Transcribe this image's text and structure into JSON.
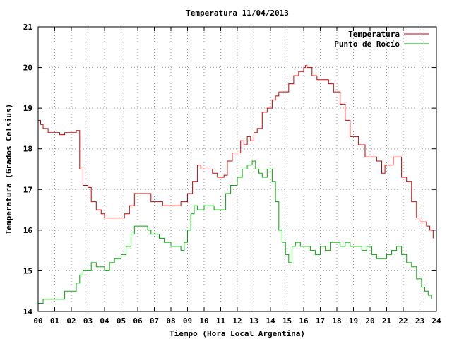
{
  "chart_data": {
    "type": "line",
    "title": "Temperatura 11/04/2013",
    "xlabel": "Tiempo (Hora Local Argentina)",
    "ylabel": "Temperatura (Grados Celsius)",
    "xlim": [
      0,
      24
    ],
    "ylim": [
      14,
      21
    ],
    "x_ticks": [
      "00",
      "01",
      "02",
      "03",
      "04",
      "05",
      "06",
      "07",
      "08",
      "09",
      "10",
      "11",
      "12",
      "13",
      "14",
      "15",
      "16",
      "17",
      "18",
      "19",
      "20",
      "21",
      "22",
      "23",
      "24"
    ],
    "y_ticks": [
      "14",
      "15",
      "16",
      "17",
      "18",
      "19",
      "20",
      "21"
    ],
    "grid": true,
    "legend": "top-right",
    "series": [
      {
        "name": "Temperatura",
        "color": "#cc0000",
        "points": [
          [
            0.0,
            18.7
          ],
          [
            0.15,
            18.6
          ],
          [
            0.3,
            18.5
          ],
          [
            0.6,
            18.4
          ],
          [
            1.0,
            18.4
          ],
          [
            1.3,
            18.35
          ],
          [
            1.6,
            18.4
          ],
          [
            2.0,
            18.4
          ],
          [
            2.3,
            18.45
          ],
          [
            2.5,
            17.5
          ],
          [
            2.7,
            17.1
          ],
          [
            3.0,
            17.05
          ],
          [
            3.2,
            16.7
          ],
          [
            3.5,
            16.5
          ],
          [
            3.8,
            16.4
          ],
          [
            4.0,
            16.3
          ],
          [
            4.5,
            16.3
          ],
          [
            5.0,
            16.3
          ],
          [
            5.2,
            16.4
          ],
          [
            5.5,
            16.6
          ],
          [
            5.8,
            16.9
          ],
          [
            6.2,
            16.9
          ],
          [
            6.6,
            16.9
          ],
          [
            6.8,
            16.7
          ],
          [
            7.2,
            16.7
          ],
          [
            7.5,
            16.6
          ],
          [
            8.0,
            16.6
          ],
          [
            8.6,
            16.7
          ],
          [
            9.0,
            16.9
          ],
          [
            9.3,
            17.2
          ],
          [
            9.6,
            17.6
          ],
          [
            9.8,
            17.5
          ],
          [
            10.2,
            17.5
          ],
          [
            10.5,
            17.4
          ],
          [
            10.8,
            17.3
          ],
          [
            11.2,
            17.35
          ],
          [
            11.4,
            17.7
          ],
          [
            11.7,
            17.9
          ],
          [
            12.0,
            17.9
          ],
          [
            12.2,
            18.2
          ],
          [
            12.4,
            18.1
          ],
          [
            12.6,
            18.3
          ],
          [
            12.8,
            18.2
          ],
          [
            13.0,
            18.4
          ],
          [
            13.2,
            18.5
          ],
          [
            13.5,
            18.9
          ],
          [
            13.8,
            19.0
          ],
          [
            14.0,
            19.0
          ],
          [
            14.1,
            19.2
          ],
          [
            14.3,
            19.3
          ],
          [
            14.5,
            19.4
          ],
          [
            14.9,
            19.4
          ],
          [
            15.1,
            19.6
          ],
          [
            15.4,
            19.8
          ],
          [
            15.7,
            19.9
          ],
          [
            16.0,
            20.0
          ],
          [
            16.1,
            20.05
          ],
          [
            16.2,
            20.0
          ],
          [
            16.5,
            19.8
          ],
          [
            16.8,
            19.7
          ],
          [
            17.2,
            19.7
          ],
          [
            17.5,
            19.6
          ],
          [
            17.8,
            19.4
          ],
          [
            18.0,
            19.4
          ],
          [
            18.2,
            19.1
          ],
          [
            18.5,
            18.7
          ],
          [
            18.8,
            18.3
          ],
          [
            19.0,
            18.3
          ],
          [
            19.3,
            18.1
          ],
          [
            19.7,
            17.8
          ],
          [
            20.0,
            17.8
          ],
          [
            20.4,
            17.7
          ],
          [
            20.7,
            17.4
          ],
          [
            20.9,
            17.6
          ],
          [
            21.2,
            17.6
          ],
          [
            21.4,
            17.8
          ],
          [
            21.7,
            17.8
          ],
          [
            21.9,
            17.3
          ],
          [
            22.2,
            17.2
          ],
          [
            22.5,
            16.7
          ],
          [
            22.8,
            16.3
          ],
          [
            23.0,
            16.2
          ],
          [
            23.4,
            16.1
          ],
          [
            23.6,
            16.0
          ],
          [
            23.8,
            15.8
          ]
        ]
      },
      {
        "name": "Punto de Rocío",
        "color": "#00aa00",
        "points": [
          [
            0.0,
            14.2
          ],
          [
            0.3,
            14.3
          ],
          [
            0.6,
            14.3
          ],
          [
            1.0,
            14.3
          ],
          [
            1.3,
            14.3
          ],
          [
            1.6,
            14.5
          ],
          [
            2.0,
            14.5
          ],
          [
            2.3,
            14.7
          ],
          [
            2.5,
            14.9
          ],
          [
            2.7,
            15.0
          ],
          [
            3.0,
            15.0
          ],
          [
            3.2,
            15.2
          ],
          [
            3.5,
            15.1
          ],
          [
            3.8,
            15.1
          ],
          [
            4.0,
            15.0
          ],
          [
            4.3,
            15.2
          ],
          [
            4.6,
            15.3
          ],
          [
            5.0,
            15.4
          ],
          [
            5.3,
            15.6
          ],
          [
            5.6,
            15.9
          ],
          [
            5.8,
            16.1
          ],
          [
            6.2,
            16.1
          ],
          [
            6.6,
            16.0
          ],
          [
            6.8,
            15.9
          ],
          [
            7.3,
            15.8
          ],
          [
            7.6,
            15.7
          ],
          [
            8.0,
            15.6
          ],
          [
            8.3,
            15.6
          ],
          [
            8.6,
            15.5
          ],
          [
            8.8,
            15.7
          ],
          [
            9.0,
            16.0
          ],
          [
            9.2,
            16.4
          ],
          [
            9.4,
            16.6
          ],
          [
            9.6,
            16.5
          ],
          [
            10.0,
            16.6
          ],
          [
            10.3,
            16.6
          ],
          [
            10.6,
            16.5
          ],
          [
            11.0,
            16.5
          ],
          [
            11.3,
            16.9
          ],
          [
            11.6,
            17.1
          ],
          [
            12.0,
            17.3
          ],
          [
            12.3,
            17.5
          ],
          [
            12.6,
            17.6
          ],
          [
            12.9,
            17.7
          ],
          [
            13.1,
            17.5
          ],
          [
            13.3,
            17.4
          ],
          [
            13.5,
            17.3
          ],
          [
            13.8,
            17.5
          ],
          [
            14.1,
            17.2
          ],
          [
            14.3,
            16.7
          ],
          [
            14.5,
            16.0
          ],
          [
            14.7,
            15.7
          ],
          [
            14.9,
            15.4
          ],
          [
            15.1,
            15.2
          ],
          [
            15.3,
            15.6
          ],
          [
            15.5,
            15.7
          ],
          [
            15.8,
            15.6
          ],
          [
            16.1,
            15.6
          ],
          [
            16.4,
            15.5
          ],
          [
            16.7,
            15.4
          ],
          [
            17.0,
            15.6
          ],
          [
            17.3,
            15.5
          ],
          [
            17.6,
            15.7
          ],
          [
            17.9,
            15.7
          ],
          [
            18.2,
            15.6
          ],
          [
            18.5,
            15.7
          ],
          [
            18.8,
            15.6
          ],
          [
            19.1,
            15.6
          ],
          [
            19.5,
            15.5
          ],
          [
            19.8,
            15.6
          ],
          [
            20.1,
            15.4
          ],
          [
            20.4,
            15.3
          ],
          [
            20.7,
            15.3
          ],
          [
            21.0,
            15.4
          ],
          [
            21.3,
            15.5
          ],
          [
            21.6,
            15.6
          ],
          [
            21.9,
            15.4
          ],
          [
            22.2,
            15.2
          ],
          [
            22.5,
            15.1
          ],
          [
            22.8,
            14.8
          ],
          [
            23.1,
            14.6
          ],
          [
            23.3,
            14.5
          ],
          [
            23.5,
            14.4
          ],
          [
            23.7,
            14.3
          ]
        ]
      }
    ]
  }
}
